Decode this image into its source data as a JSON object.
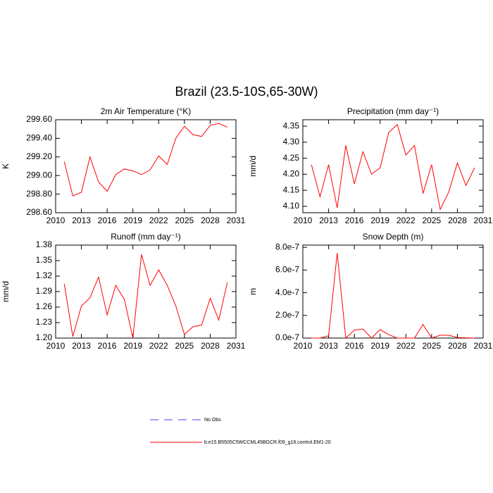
{
  "title": "Brazil (23.5-10S,65-30W)",
  "legend": [
    {
      "name": "No Obs",
      "color": "#4040ff",
      "dashed": true
    },
    {
      "name": "b.e15.B5505C5WCCML45BGCR.f09_g16.control.EM1-20",
      "color": "#ff0000",
      "dashed": false
    }
  ],
  "chart_data": [
    {
      "type": "line",
      "title": "2m Air Temperature (°K)",
      "y_label": "K",
      "x": [
        2011,
        2012,
        2013,
        2014,
        2015,
        2016,
        2017,
        2018,
        2019,
        2020,
        2021,
        2022,
        2023,
        2024,
        2025,
        2026,
        2027,
        2028,
        2029,
        2030
      ],
      "series": [
        {
          "color": "#ff0000",
          "values": [
            299.15,
            298.78,
            298.82,
            299.2,
            298.93,
            298.83,
            299.01,
            299.07,
            299.05,
            299.01,
            299.06,
            299.21,
            299.12,
            299.4,
            299.53,
            299.44,
            299.42,
            299.54,
            299.56,
            299.52
          ]
        }
      ],
      "xlim": [
        2010,
        2031
      ],
      "xticks": [
        2010,
        2013,
        2016,
        2019,
        2022,
        2025,
        2028,
        2031
      ],
      "ylim": [
        298.6,
        299.6
      ],
      "yticks": [
        {
          "value": 298.6,
          "label": "298.60"
        },
        {
          "value": 298.8,
          "label": "298.80"
        },
        {
          "value": 299.0,
          "label": "299.00"
        },
        {
          "value": 299.2,
          "label": "299.20"
        },
        {
          "value": 299.4,
          "label": "299.40"
        },
        {
          "value": 299.6,
          "label": "299.60"
        }
      ]
    },
    {
      "type": "line",
      "title": "Precipitation (mm day⁻¹)",
      "y_label": "mm/d",
      "x": [
        2011,
        2012,
        2013,
        2014,
        2015,
        2016,
        2017,
        2018,
        2019,
        2020,
        2021,
        2022,
        2023,
        2024,
        2025,
        2026,
        2027,
        2028,
        2029,
        2030
      ],
      "series": [
        {
          "color": "#ff0000",
          "values": [
            4.23,
            4.13,
            4.23,
            4.095,
            4.29,
            4.17,
            4.27,
            4.2,
            4.22,
            4.33,
            4.355,
            4.26,
            4.29,
            4.14,
            4.23,
            4.09,
            4.145,
            4.235,
            4.165,
            4.22
          ]
        }
      ],
      "xlim": [
        2010,
        2031
      ],
      "xticks": [
        2010,
        2013,
        2016,
        2019,
        2022,
        2025,
        2028,
        2031
      ],
      "ylim": [
        4.08,
        4.37
      ],
      "yticks": [
        {
          "value": 4.1,
          "label": "4.10"
        },
        {
          "value": 4.15,
          "label": "4.15"
        },
        {
          "value": 4.2,
          "label": "4.20"
        },
        {
          "value": 4.25,
          "label": "4.25"
        },
        {
          "value": 4.3,
          "label": "4.30"
        },
        {
          "value": 4.35,
          "label": "4.35"
        }
      ]
    },
    {
      "type": "line",
      "title": "Runoff (mm day⁻¹)",
      "y_label": "mm/d",
      "x": [
        2011,
        2012,
        2013,
        2014,
        2015,
        2016,
        2017,
        2018,
        2019,
        2020,
        2021,
        2022,
        2023,
        2024,
        2025,
        2026,
        2027,
        2028,
        2029,
        2030
      ],
      "series": [
        {
          "color": "#ff0000",
          "values": [
            1.305,
            1.203,
            1.262,
            1.278,
            1.318,
            1.245,
            1.302,
            1.275,
            1.2,
            1.362,
            1.302,
            1.332,
            1.302,
            1.262,
            1.207,
            1.222,
            1.225,
            1.277,
            1.235,
            1.308
          ]
        }
      ],
      "xlim": [
        2010,
        2031
      ],
      "xticks": [
        2010,
        2013,
        2016,
        2019,
        2022,
        2025,
        2028,
        2031
      ],
      "ylim": [
        1.2,
        1.38
      ],
      "yticks": [
        {
          "value": 1.2,
          "label": "1.20"
        },
        {
          "value": 1.23,
          "label": "1.23"
        },
        {
          "value": 1.26,
          "label": "1.26"
        },
        {
          "value": 1.29,
          "label": "1.29"
        },
        {
          "value": 1.32,
          "label": "1.32"
        },
        {
          "value": 1.35,
          "label": "1.35"
        },
        {
          "value": 1.38,
          "label": "1.38"
        }
      ]
    },
    {
      "type": "line",
      "title": "Snow Depth (m)",
      "y_label": "m",
      "x": [
        2011,
        2012,
        2013,
        2014,
        2015,
        2016,
        2017,
        2018,
        2019,
        2020,
        2021,
        2022,
        2023,
        2024,
        2025,
        2026,
        2027,
        2028,
        2029,
        2030
      ],
      "series": [
        {
          "color": "#ff0000",
          "values": [
            0,
            0,
            2e-08,
            7.5e-07,
            0,
            7e-08,
            8e-08,
            0,
            7.5e-08,
            3e-08,
            0,
            0,
            0,
            1.2e-07,
            0,
            2.5e-08,
            2.5e-08,
            5e-09,
            2e-09,
            0
          ]
        }
      ],
      "xlim": [
        2010,
        2031
      ],
      "xticks": [
        2010,
        2013,
        2016,
        2019,
        2022,
        2025,
        2028,
        2031
      ],
      "ylim": [
        0,
        8.2e-07
      ],
      "yticks": [
        {
          "value": 0,
          "label": "0.0e-7"
        },
        {
          "value": 2e-07,
          "label": "2.0e-7"
        },
        {
          "value": 4e-07,
          "label": "4.0e-7"
        },
        {
          "value": 6e-07,
          "label": "6.0e-7"
        },
        {
          "value": 8e-07,
          "label": "8.0e-7"
        }
      ]
    }
  ]
}
